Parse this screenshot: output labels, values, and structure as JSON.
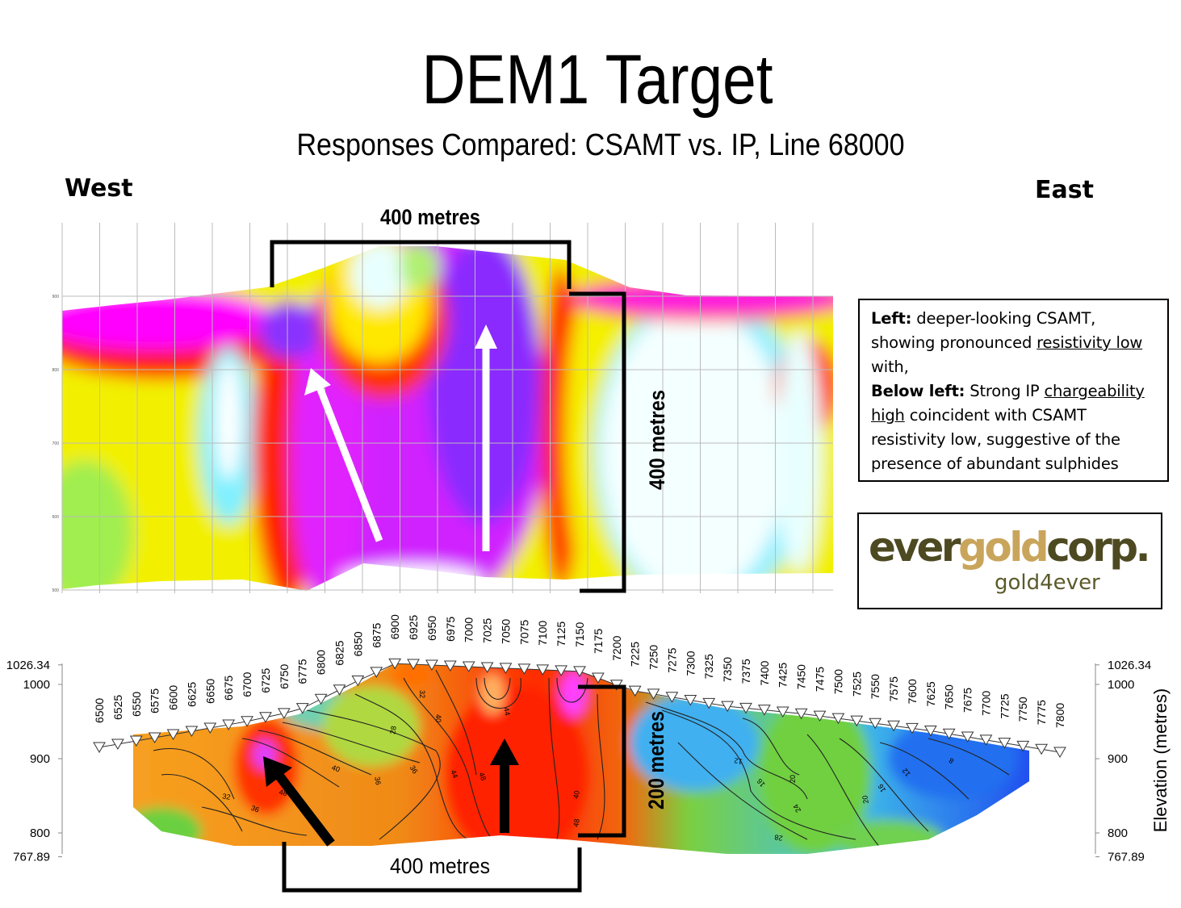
{
  "header": {
    "title": "DEM1 Target",
    "subtitle": "Responses Compared: CSAMT vs. IP, Line 68000"
  },
  "csamt_section": {
    "west_label": "West",
    "east_label": "East",
    "width_label": "400 metres",
    "depth_label": "400 metres",
    "elevation_ticks": [
      900,
      800,
      700,
      600,
      500
    ]
  },
  "note": {
    "parts": [
      "Left:",
      " deeper-looking CSAMT, showing pronounced ",
      "resistivity low",
      " with, ",
      "Below left:",
      " Strong IP ",
      "chargeability high",
      " coincident with CSAMT resistivity low, suggestive of the presence of abundant sulphides"
    ]
  },
  "logo": {
    "name_start": "ever",
    "name_middle": "gold",
    "name_end": "corp.",
    "tagline": "gold4ever"
  },
  "ip_section": {
    "stations": [
      6500,
      6525,
      6550,
      6575,
      6600,
      6625,
      6650,
      6675,
      6700,
      6725,
      6750,
      6775,
      6800,
      6825,
      6850,
      6875,
      6900,
      6925,
      6950,
      6975,
      7000,
      7025,
      7050,
      7075,
      7100,
      7125,
      7150,
      7175,
      7200,
      7225,
      7250,
      7275,
      7300,
      7325,
      7350,
      7375,
      7400,
      7425,
      7450,
      7475,
      7500,
      7525,
      7550,
      7575,
      7600,
      7625,
      7650,
      7675,
      7700,
      7725,
      7750,
      7775,
      7800
    ],
    "elevation_ticks_left": [
      1026.34,
      1000,
      900,
      800,
      767.89
    ],
    "elevation_ticks_right": [
      1026.34,
      1000,
      900,
      800,
      767.89
    ],
    "axis_title": "Elevation (metres)",
    "contour_labels": [
      "32",
      "36",
      "40",
      "48",
      "36",
      "28",
      "32",
      "40",
      "36",
      "44",
      "48",
      "44",
      "40",
      "48",
      "12",
      "16",
      "20",
      "24",
      "16",
      "20",
      "12",
      "8",
      "28"
    ],
    "width_label": "400 metres",
    "depth_label": "200 metres"
  }
}
